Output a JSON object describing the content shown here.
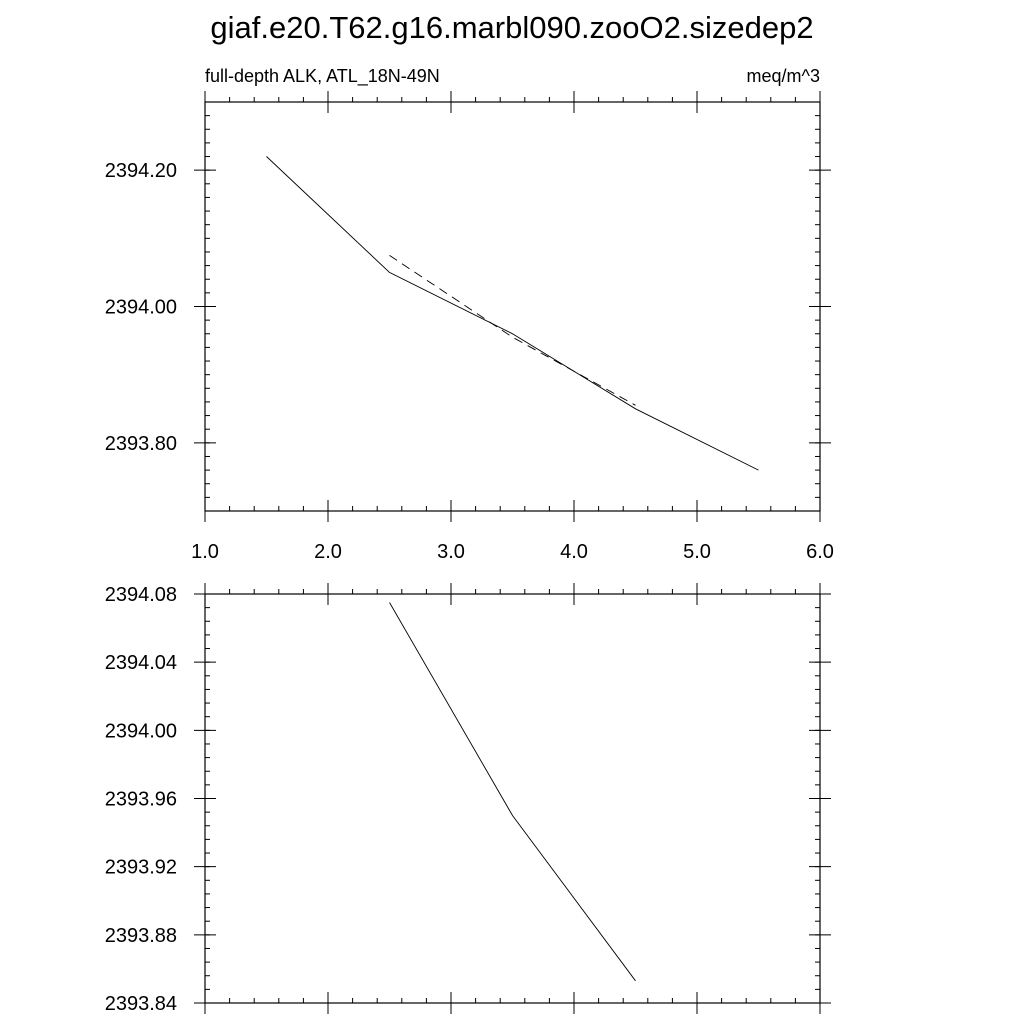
{
  "figure": {
    "title": "giaf.e20.T62.g16.marbl090.zooO2.sizedep2"
  },
  "chart_data": [
    {
      "type": "line",
      "left_label": "full-depth ALK, ATL_18N-49N",
      "right_label": "meq/m^3",
      "xlim": [
        1.0,
        6.0
      ],
      "ylim": [
        2393.7,
        2394.3
      ],
      "x_ticks": [
        "1.0",
        "2.0",
        "3.0",
        "4.0",
        "5.0",
        "6.0"
      ],
      "x_tick_values": [
        1,
        2,
        3,
        4,
        5,
        6
      ],
      "y_ticks": [
        "2393.80",
        "2394.00",
        "2394.20"
      ],
      "y_tick_values": [
        2393.8,
        2394.0,
        2394.2
      ],
      "grid": false,
      "series": [
        {
          "style": "solid",
          "x": [
            1.5,
            2.5,
            3.5,
            4.5,
            5.5
          ],
          "y": [
            2394.22,
            2394.05,
            2393.96,
            2393.85,
            2393.76
          ]
        },
        {
          "style": "dashed",
          "x": [
            2.5,
            3.5,
            4.5
          ],
          "y": [
            2394.075,
            2393.955,
            2393.855
          ]
        }
      ]
    },
    {
      "type": "line",
      "xlim": [
        1.0,
        6.0
      ],
      "ylim": [
        2393.84,
        2394.08
      ],
      "y_ticks": [
        "2394.08",
        "2394.04",
        "2394.00",
        "2393.96",
        "2393.92",
        "2393.88",
        "2393.84"
      ],
      "y_tick_values": [
        2394.08,
        2394.04,
        2394.0,
        2393.96,
        2393.92,
        2393.88,
        2393.84
      ],
      "x_tick_values": [
        1,
        2,
        3,
        4,
        5,
        6
      ],
      "grid": false,
      "series": [
        {
          "style": "solid",
          "x": [
            2.5,
            3.5,
            4.5
          ],
          "y": [
            2394.075,
            2393.95,
            2393.853
          ]
        }
      ]
    }
  ]
}
